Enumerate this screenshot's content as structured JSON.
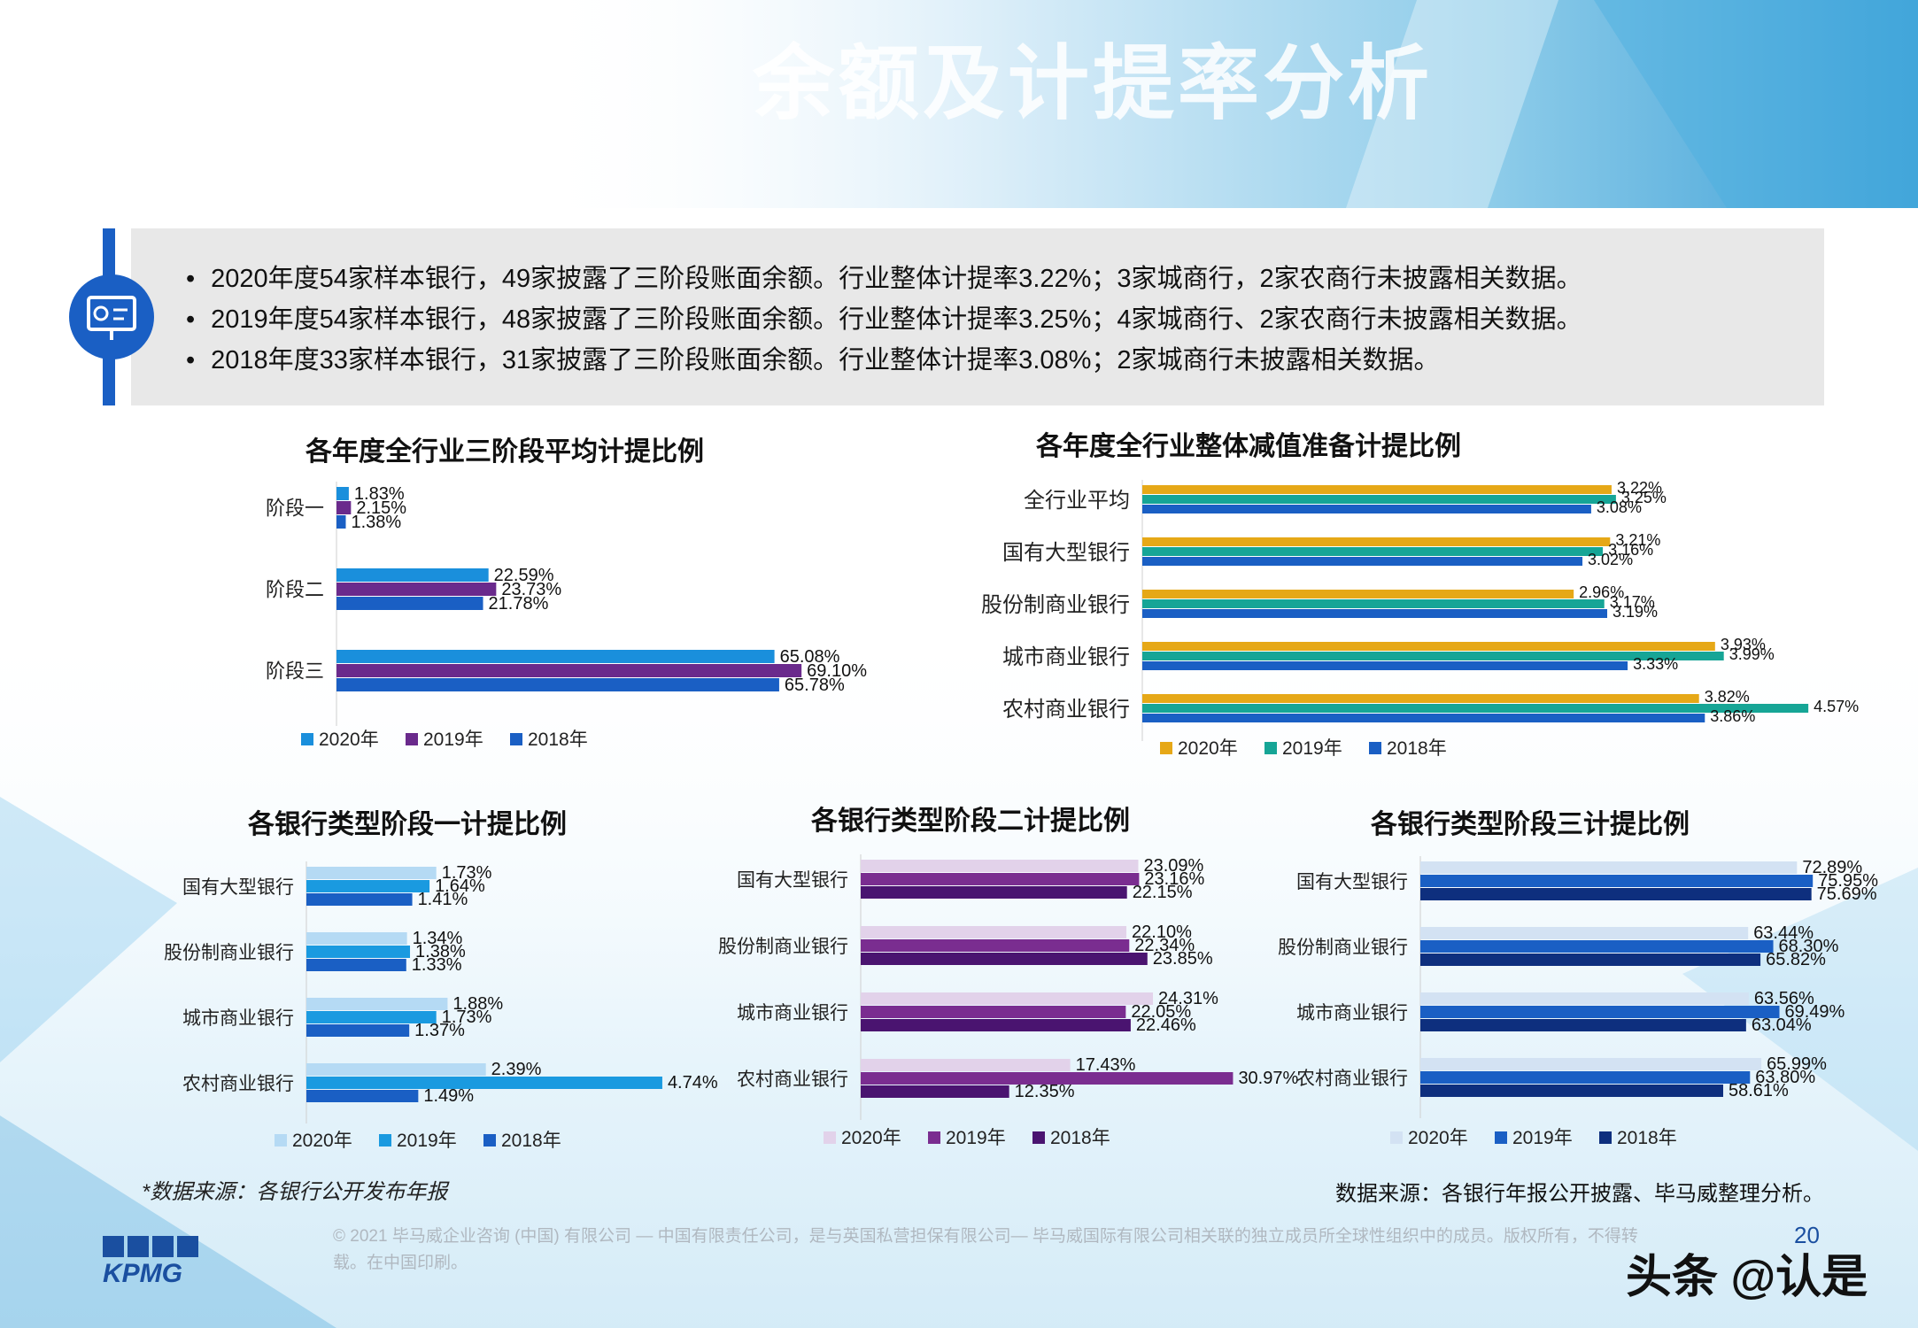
{
  "header": {
    "title": "余额及计提率分析"
  },
  "info": {
    "bullets": [
      "2020年度54家样本银行，49家披露了三阶段账面余额。行业整体计提率3.22%；3家城商行，2家农商行未披露相关数据。",
      "2019年度54家样本银行，48家披露了三阶段账面余额。行业整体计提率3.25%；4家城商行、2家农商行未披露相关数据。",
      "2018年度33家样本银行，31家披露了三阶段账面余额。行业整体计提率3.08%；2家城商行未披露相关数据。"
    ]
  },
  "chart_data": [
    {
      "type": "bar",
      "orientation": "horizontal",
      "title": "各年度全行业三阶段平均计提比例",
      "categories": [
        "阶段一",
        "阶段二",
        "阶段三"
      ],
      "series": [
        {
          "name": "2020年",
          "color": "#1a8fdc",
          "values": [
            1.83,
            22.59,
            65.08
          ],
          "labels": [
            "1.83%",
            "22.59%",
            "65.08%"
          ]
        },
        {
          "name": "2019年",
          "color": "#6a2a8c",
          "values": [
            2.15,
            23.73,
            69.1
          ],
          "labels": [
            "2.15%",
            "23.73%",
            "69.10%"
          ]
        },
        {
          "name": "2018年",
          "color": "#1a5fc4",
          "values": [
            1.38,
            21.78,
            65.78
          ],
          "labels": [
            "1.38%",
            "21.78%",
            "65.78%"
          ]
        }
      ],
      "xlim": [
        0,
        75
      ],
      "legend": "bottom"
    },
    {
      "type": "bar",
      "orientation": "horizontal",
      "title": "各年度全行业整体减值准备计提比例",
      "categories": [
        "全行业平均",
        "国有大型银行",
        "股份制商业银行",
        "城市商业银行",
        "农村商业银行"
      ],
      "series": [
        {
          "name": "2020年",
          "color": "#e6a817",
          "values": [
            3.22,
            3.21,
            2.96,
            3.93,
            3.82
          ],
          "labels": [
            "3.22%",
            "3.21%",
            "2.96%",
            "3.93%",
            "3.82%"
          ]
        },
        {
          "name": "2019年",
          "color": "#16a596",
          "values": [
            3.25,
            3.16,
            3.17,
            3.99,
            4.57
          ],
          "labels": [
            "3.25%",
            "3.16%",
            "3.17%",
            "3.99%",
            "4.57%"
          ]
        },
        {
          "name": "2018年",
          "color": "#1a5fc4",
          "values": [
            3.08,
            3.02,
            3.19,
            3.33,
            3.86
          ],
          "labels": [
            "3.08%",
            "3.02%",
            "3.19%",
            "3.33%",
            "3.86%"
          ]
        }
      ],
      "xlim": [
        0,
        4.8
      ],
      "legend": "bottom"
    },
    {
      "type": "bar",
      "orientation": "horizontal",
      "title": "各银行类型阶段一计提比例",
      "categories": [
        "国有大型银行",
        "股份制商业银行",
        "城市商业银行",
        "农村商业银行"
      ],
      "series": [
        {
          "name": "2020年",
          "color": "#b5daf4",
          "values": [
            1.73,
            1.34,
            1.88,
            2.39
          ],
          "labels": [
            "1.73%",
            "1.34%",
            "1.88%",
            "2.39%"
          ]
        },
        {
          "name": "2019年",
          "color": "#1a9ae0",
          "values": [
            1.64,
            1.38,
            1.73,
            4.74
          ],
          "labels": [
            "1.64%",
            "1.38%",
            "1.73%",
            "4.74%"
          ]
        },
        {
          "name": "2018年",
          "color": "#1a5fc4",
          "values": [
            1.41,
            1.33,
            1.37,
            1.49
          ],
          "labels": [
            "1.41%",
            "1.33%",
            "1.37%",
            "1.49%"
          ]
        }
      ],
      "xlim": [
        0,
        5
      ],
      "legend": "bottom"
    },
    {
      "type": "bar",
      "orientation": "horizontal",
      "title": "各银行类型阶段二计提比例",
      "categories": [
        "国有大型银行",
        "股份制商业银行",
        "城市商业银行",
        "农村商业银行"
      ],
      "series": [
        {
          "name": "2020年",
          "color": "#e2d2ea",
          "values": [
            23.09,
            22.1,
            24.31,
            17.43
          ],
          "labels": [
            "23.09%",
            "22.10%",
            "24.31%",
            "17.43%"
          ]
        },
        {
          "name": "2019年",
          "color": "#7a2d90",
          "values": [
            23.16,
            22.34,
            22.05,
            30.97
          ],
          "labels": [
            "23.16%",
            "22.34%",
            "22.05%",
            "30.97%"
          ]
        },
        {
          "name": "2018年",
          "color": "#4a1470",
          "values": [
            22.15,
            23.85,
            22.46,
            12.35
          ],
          "labels": [
            "22.15%",
            "23.85%",
            "22.46%",
            "12.35%"
          ]
        }
      ],
      "xlim": [
        0,
        33
      ],
      "legend": "bottom"
    },
    {
      "type": "bar",
      "orientation": "horizontal",
      "title": "各银行类型阶段三计提比例",
      "categories": [
        "国有大型银行",
        "股份制商业银行",
        "城市商业银行",
        "农村商业银行"
      ],
      "series": [
        {
          "name": "2020年",
          "color": "#d3e2f3",
          "values": [
            72.89,
            63.44,
            63.56,
            65.99
          ],
          "labels": [
            "72.89%",
            "63.44%",
            "63.56%",
            "65.99%"
          ]
        },
        {
          "name": "2019年",
          "color": "#1a5fc4",
          "values": [
            75.95,
            68.3,
            69.49,
            63.8
          ],
          "labels": [
            "75.95%",
            "68.30%",
            "69.49%",
            "63.80%"
          ]
        },
        {
          "name": "2018年",
          "color": "#0e2f7e",
          "values": [
            75.69,
            65.82,
            63.04,
            58.61
          ],
          "labels": [
            "75.69%",
            "65.82%",
            "63.04%",
            "58.61%"
          ]
        }
      ],
      "xlim": [
        0,
        85
      ],
      "legend": "bottom"
    }
  ],
  "sources": {
    "left": "*数据来源：各银行公开发布年报",
    "right": "数据来源：各银行年报公开披露、毕马威整理分析。"
  },
  "footer": {
    "brand": "KPMG",
    "copyright": "© 2021 毕马威企业咨询 (中国) 有限公司 — 中国有限责任公司，是与英国私营担保有限公司— 毕马威国际有限公司相关联的独立成员所全球性组织中的成员。版权所有，不得转载。在中国印刷。",
    "page": "20",
    "watermark": "头条 @认是"
  }
}
